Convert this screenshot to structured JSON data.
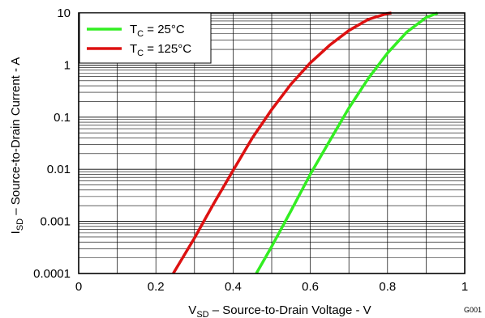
{
  "chart_data": {
    "type": "line",
    "figure_id": "G001",
    "xlabel": {
      "main": "V",
      "sub": "SD",
      "rest": " – Source-to-Drain Voltage - V"
    },
    "ylabel": {
      "main": "I",
      "sub": "SD",
      "rest": " – Source-to-Drain Current - A"
    },
    "xlim": [
      0,
      1
    ],
    "ylim": [
      0.0001,
      10
    ],
    "y_scale": "log",
    "grid": true,
    "legend_position": "top-left",
    "x_tick_labels": [
      "0",
      "0.2",
      "0.4",
      "0.6",
      "0.8",
      "1"
    ],
    "y_tick_labels": [
      "0.0001",
      "0.001",
      "0.01",
      "0.1",
      "1",
      "10"
    ],
    "series": [
      {
        "name": "TC = 25°C",
        "legend": {
          "main": "T",
          "sub": "C",
          "rest": " = 25°C"
        },
        "color": "#33ee22",
        "x": [
          0.46,
          0.5,
          0.55,
          0.6,
          0.65,
          0.7,
          0.75,
          0.8,
          0.85,
          0.9,
          0.93
        ],
        "y": [
          0.0001,
          0.00033,
          0.0016,
          0.008,
          0.035,
          0.15,
          0.55,
          1.7,
          4.3,
          8.2,
          10
        ]
      },
      {
        "name": "TC = 125°C",
        "legend": {
          "main": "T",
          "sub": "C",
          "rest": " = 125°C"
        },
        "color": "#dd1111",
        "x": [
          0.245,
          0.3,
          0.35,
          0.4,
          0.45,
          0.5,
          0.55,
          0.6,
          0.65,
          0.7,
          0.75,
          0.8,
          0.81
        ],
        "y": [
          0.0001,
          0.00048,
          0.0022,
          0.0095,
          0.04,
          0.14,
          0.43,
          1.1,
          2.4,
          4.6,
          7.5,
          9.8,
          10
        ]
      }
    ]
  }
}
